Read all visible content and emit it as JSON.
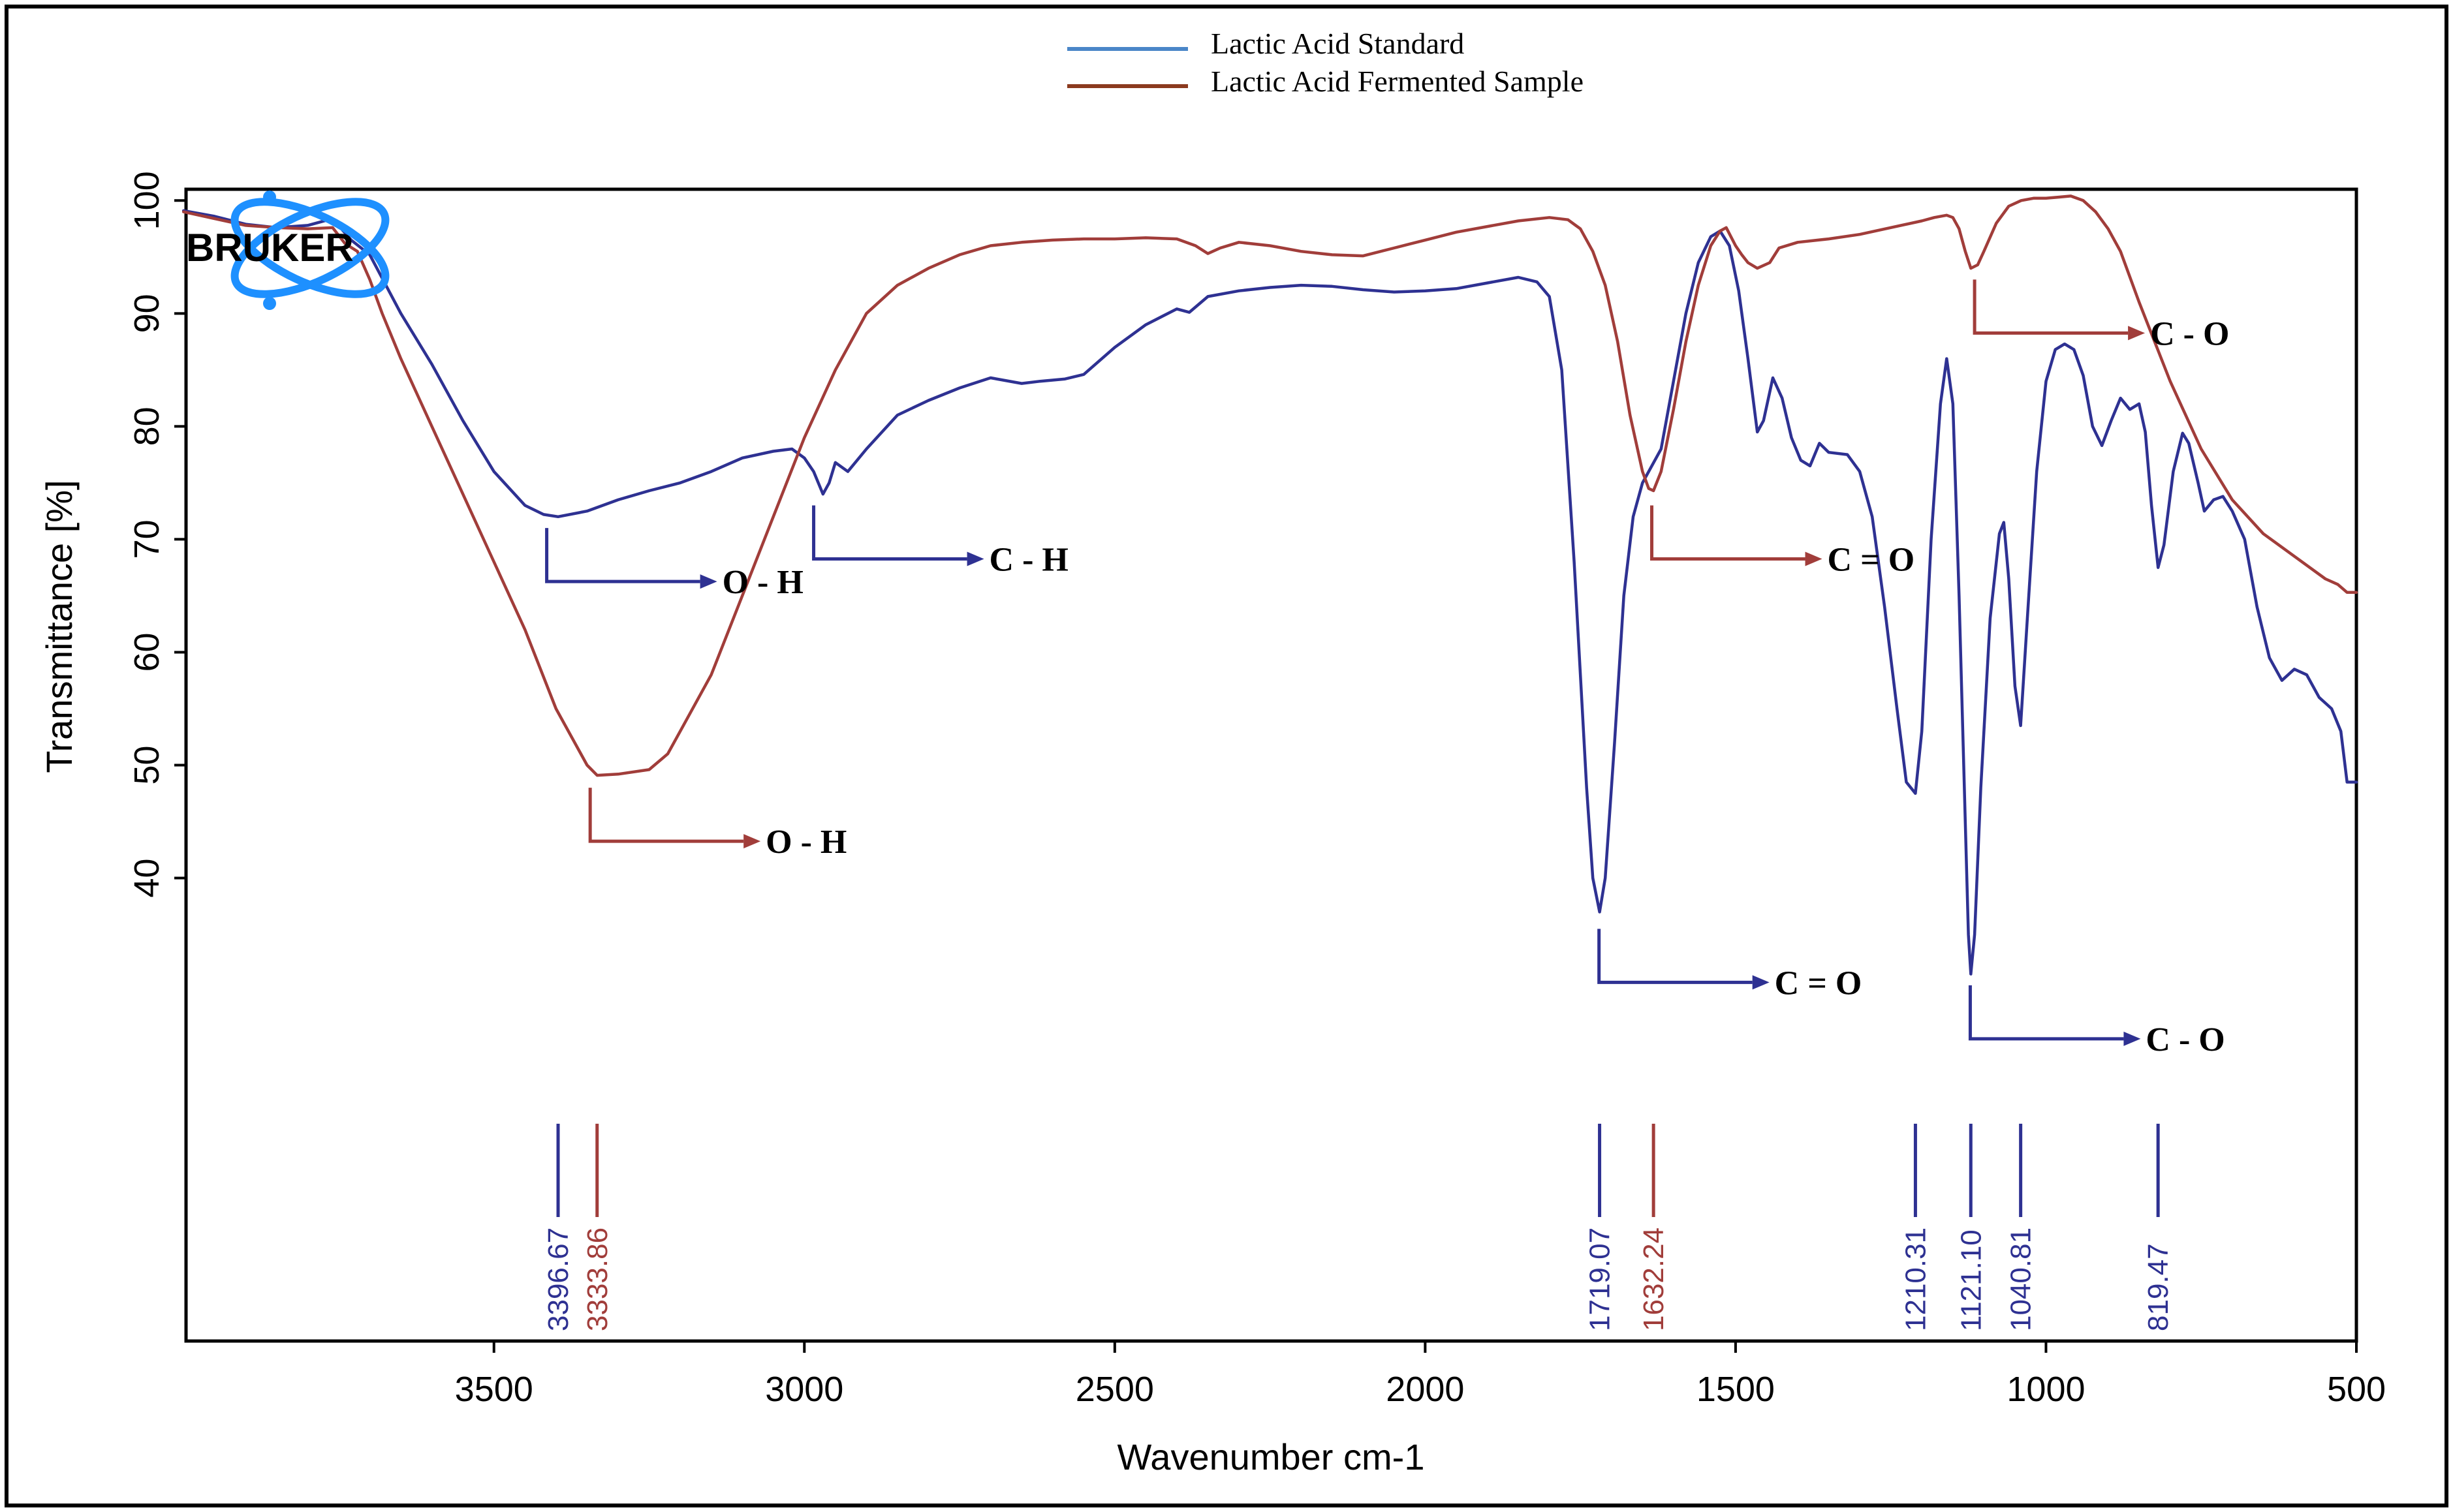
{
  "chart_data": {
    "type": "line",
    "title": "",
    "xlabel": "Wavenumber cm-1",
    "ylabel": "Transmittance [%]",
    "xlim": [
      4000,
      500
    ],
    "ylim": [
      -1,
      101
    ],
    "x_ticks": [
      3500,
      3000,
      2500,
      2000,
      1500,
      1000,
      500
    ],
    "y_ticks": [
      40,
      50,
      60,
      70,
      80,
      90,
      100
    ],
    "grid": false,
    "legend_position": "top-center",
    "logo_text": "BRUKER",
    "series": [
      {
        "name": "Lactic Acid Standard",
        "color": "#2e3192",
        "legend_color": "#4a86c8",
        "points": [
          [
            4000,
            99.1
          ],
          [
            3950,
            98.6
          ],
          [
            3900,
            97.9
          ],
          [
            3850,
            97.6
          ],
          [
            3800,
            97.8
          ],
          [
            3760,
            98.4
          ],
          [
            3730,
            96.5
          ],
          [
            3700,
            95.2
          ],
          [
            3650,
            90.0
          ],
          [
            3600,
            85.5
          ],
          [
            3550,
            80.5
          ],
          [
            3500,
            76.0
          ],
          [
            3450,
            73.0
          ],
          [
            3420,
            72.2
          ],
          [
            3396.67,
            72.0
          ],
          [
            3350,
            72.5
          ],
          [
            3300,
            73.5
          ],
          [
            3250,
            74.3
          ],
          [
            3200,
            75.0
          ],
          [
            3150,
            76.0
          ],
          [
            3100,
            77.2
          ],
          [
            3050,
            77.8
          ],
          [
            3020,
            78.0
          ],
          [
            3000,
            77.2
          ],
          [
            2985,
            76.0
          ],
          [
            2970,
            74.0
          ],
          [
            2960,
            75.0
          ],
          [
            2950,
            76.8
          ],
          [
            2930,
            76.0
          ],
          [
            2900,
            78.0
          ],
          [
            2850,
            81.0
          ],
          [
            2800,
            82.3
          ],
          [
            2750,
            83.4
          ],
          [
            2700,
            84.3
          ],
          [
            2650,
            83.8
          ],
          [
            2620,
            84.0
          ],
          [
            2580,
            84.2
          ],
          [
            2550,
            84.6
          ],
          [
            2500,
            87.0
          ],
          [
            2450,
            89.0
          ],
          [
            2400,
            90.4
          ],
          [
            2380,
            90.1
          ],
          [
            2350,
            91.5
          ],
          [
            2300,
            92.0
          ],
          [
            2250,
            92.3
          ],
          [
            2200,
            92.5
          ],
          [
            2150,
            92.4
          ],
          [
            2100,
            92.1
          ],
          [
            2050,
            91.9
          ],
          [
            2000,
            92.0
          ],
          [
            1950,
            92.2
          ],
          [
            1900,
            92.7
          ],
          [
            1850,
            93.2
          ],
          [
            1820,
            92.8
          ],
          [
            1800,
            91.5
          ],
          [
            1780,
            85.0
          ],
          [
            1760,
            68.0
          ],
          [
            1740,
            48.0
          ],
          [
            1730,
            40.0
          ],
          [
            1719.07,
            37.0
          ],
          [
            1710,
            40.0
          ],
          [
            1695,
            52.0
          ],
          [
            1680,
            65.0
          ],
          [
            1665,
            72.0
          ],
          [
            1650,
            75.0
          ],
          [
            1620,
            78.0
          ],
          [
            1600,
            84.0
          ],
          [
            1580,
            90.0
          ],
          [
            1560,
            94.5
          ],
          [
            1540,
            96.8
          ],
          [
            1525,
            97.3
          ],
          [
            1510,
            96.0
          ],
          [
            1495,
            92.0
          ],
          [
            1480,
            86.0
          ],
          [
            1465,
            79.5
          ],
          [
            1455,
            80.5
          ],
          [
            1440,
            84.3
          ],
          [
            1425,
            82.5
          ],
          [
            1410,
            79.0
          ],
          [
            1395,
            77.0
          ],
          [
            1380,
            76.5
          ],
          [
            1365,
            78.5
          ],
          [
            1350,
            77.7
          ],
          [
            1320,
            77.5
          ],
          [
            1300,
            76.0
          ],
          [
            1280,
            72.0
          ],
          [
            1260,
            64.0
          ],
          [
            1240,
            55.0
          ],
          [
            1225,
            48.5
          ],
          [
            1210.31,
            47.5
          ],
          [
            1200,
            53.0
          ],
          [
            1185,
            70.0
          ],
          [
            1170,
            82.0
          ],
          [
            1160,
            86.0
          ],
          [
            1150,
            82.0
          ],
          [
            1140,
            65.0
          ],
          [
            1130,
            45.0
          ],
          [
            1125,
            35.0
          ],
          [
            1121.1,
            31.5
          ],
          [
            1115,
            35.0
          ],
          [
            1105,
            48.0
          ],
          [
            1090,
            63.0
          ],
          [
            1075,
            70.5
          ],
          [
            1068,
            71.5
          ],
          [
            1060,
            66.5
          ],
          [
            1050,
            57.0
          ],
          [
            1040.81,
            53.5
          ],
          [
            1030,
            63.0
          ],
          [
            1015,
            76.0
          ],
          [
            1000,
            84.0
          ],
          [
            985,
            86.8
          ],
          [
            970,
            87.3
          ],
          [
            955,
            86.8
          ],
          [
            940,
            84.5
          ],
          [
            925,
            80.0
          ],
          [
            910,
            78.3
          ],
          [
            895,
            80.5
          ],
          [
            880,
            82.5
          ],
          [
            865,
            81.5
          ],
          [
            850,
            82.0
          ],
          [
            840,
            79.5
          ],
          [
            830,
            73.0
          ],
          [
            819.47,
            67.5
          ],
          [
            810,
            69.5
          ],
          [
            795,
            76.0
          ],
          [
            780,
            79.4
          ],
          [
            770,
            78.5
          ],
          [
            755,
            75.0
          ],
          [
            745,
            72.5
          ],
          [
            730,
            73.5
          ],
          [
            715,
            73.8
          ],
          [
            700,
            72.5
          ],
          [
            680,
            70.0
          ],
          [
            660,
            64.0
          ],
          [
            640,
            59.5
          ],
          [
            620,
            57.5
          ],
          [
            600,
            58.5
          ],
          [
            580,
            58.0
          ],
          [
            560,
            56.0
          ],
          [
            540,
            55.0
          ],
          [
            525,
            53.0
          ],
          [
            515,
            48.5
          ],
          [
            500,
            48.5
          ]
        ]
      },
      {
        "name": "Lactic Acid Fermented Sample",
        "color": "#a13d3a",
        "legend_color": "#8b3a1e",
        "points": [
          [
            4000,
            99.0
          ],
          [
            3950,
            98.4
          ],
          [
            3900,
            97.8
          ],
          [
            3850,
            97.6
          ],
          [
            3800,
            97.5
          ],
          [
            3760,
            97.6
          ],
          [
            3740,
            96.2
          ],
          [
            3720,
            95.5
          ],
          [
            3700,
            93.0
          ],
          [
            3680,
            90.0
          ],
          [
            3650,
            86.0
          ],
          [
            3600,
            80.0
          ],
          [
            3550,
            74.0
          ],
          [
            3500,
            68.0
          ],
          [
            3450,
            62.0
          ],
          [
            3400,
            55.0
          ],
          [
            3350,
            50.0
          ],
          [
            3333.86,
            49.1
          ],
          [
            3300,
            49.2
          ],
          [
            3250,
            49.6
          ],
          [
            3220,
            51.0
          ],
          [
            3200,
            53.0
          ],
          [
            3150,
            58.0
          ],
          [
            3100,
            65.0
          ],
          [
            3050,
            72.0
          ],
          [
            3000,
            79.0
          ],
          [
            2950,
            85.0
          ],
          [
            2900,
            90.0
          ],
          [
            2850,
            92.5
          ],
          [
            2800,
            94.0
          ],
          [
            2750,
            95.2
          ],
          [
            2700,
            96.0
          ],
          [
            2650,
            96.3
          ],
          [
            2600,
            96.5
          ],
          [
            2550,
            96.6
          ],
          [
            2500,
            96.6
          ],
          [
            2450,
            96.7
          ],
          [
            2400,
            96.6
          ],
          [
            2370,
            96.0
          ],
          [
            2350,
            95.3
          ],
          [
            2330,
            95.8
          ],
          [
            2300,
            96.3
          ],
          [
            2250,
            96.0
          ],
          [
            2200,
            95.5
          ],
          [
            2150,
            95.2
          ],
          [
            2100,
            95.1
          ],
          [
            2050,
            95.8
          ],
          [
            2000,
            96.5
          ],
          [
            1950,
            97.2
          ],
          [
            1900,
            97.7
          ],
          [
            1850,
            98.2
          ],
          [
            1800,
            98.5
          ],
          [
            1770,
            98.3
          ],
          [
            1750,
            97.5
          ],
          [
            1730,
            95.5
          ],
          [
            1710,
            92.5
          ],
          [
            1690,
            87.5
          ],
          [
            1670,
            81.0
          ],
          [
            1650,
            76.0
          ],
          [
            1640,
            74.5
          ],
          [
            1632.24,
            74.3
          ],
          [
            1620,
            76.0
          ],
          [
            1600,
            81.5
          ],
          [
            1580,
            87.5
          ],
          [
            1560,
            92.5
          ],
          [
            1540,
            96.0
          ],
          [
            1525,
            97.3
          ],
          [
            1515,
            97.6
          ],
          [
            1500,
            96.0
          ],
          [
            1490,
            95.2
          ],
          [
            1480,
            94.5
          ],
          [
            1465,
            94.0
          ],
          [
            1445,
            94.5
          ],
          [
            1430,
            95.8
          ],
          [
            1400,
            96.3
          ],
          [
            1350,
            96.6
          ],
          [
            1300,
            97.0
          ],
          [
            1250,
            97.6
          ],
          [
            1200,
            98.2
          ],
          [
            1180,
            98.5
          ],
          [
            1160,
            98.7
          ],
          [
            1150,
            98.5
          ],
          [
            1140,
            97.5
          ],
          [
            1130,
            95.5
          ],
          [
            1121.1,
            94.0
          ],
          [
            1110,
            94.3
          ],
          [
            1100,
            95.5
          ],
          [
            1080,
            98.0
          ],
          [
            1060,
            99.5
          ],
          [
            1040,
            100.0
          ],
          [
            1020,
            100.2
          ],
          [
            1000,
            100.2
          ],
          [
            980,
            100.3
          ],
          [
            960,
            100.4
          ],
          [
            940,
            100.0
          ],
          [
            920,
            99.0
          ],
          [
            900,
            97.5
          ],
          [
            880,
            95.5
          ],
          [
            850,
            91.0
          ],
          [
            800,
            84.0
          ],
          [
            750,
            78.0
          ],
          [
            700,
            73.5
          ],
          [
            650,
            70.5
          ],
          [
            600,
            68.5
          ],
          [
            550,
            66.5
          ],
          [
            530,
            66.0
          ],
          [
            515,
            65.3
          ],
          [
            500,
            65.3
          ]
        ]
      }
    ],
    "peak_markers": [
      {
        "wavenumber": 3396.67,
        "label": "3396.67",
        "series": "Lactic Acid Standard"
      },
      {
        "wavenumber": 3333.86,
        "label": "3333.86",
        "series": "Lactic Acid Fermented Sample"
      },
      {
        "wavenumber": 1719.07,
        "label": "1719.07",
        "series": "Lactic Acid Standard"
      },
      {
        "wavenumber": 1632.24,
        "label": "1632.24",
        "series": "Lactic Acid Fermented Sample"
      },
      {
        "wavenumber": 1210.31,
        "label": "1210.31",
        "series": "Lactic Acid Standard"
      },
      {
        "wavenumber": 1121.1,
        "label": "1121.10",
        "series": "Lactic Acid Standard"
      },
      {
        "wavenumber": 1040.81,
        "label": "1040.81",
        "series": "Lactic Acid Standard"
      },
      {
        "wavenumber": 819.47,
        "label": "819.47",
        "series": "Lactic Acid Standard"
      }
    ],
    "annotations": [
      {
        "label": "O - H",
        "series": "Lactic Acid Standard",
        "wavenumber": 3415,
        "value": 71
      },
      {
        "label": "C - H",
        "series": "Lactic Acid Standard",
        "wavenumber": 2985,
        "value": 73
      },
      {
        "label": "O - H",
        "series": "Lactic Acid Fermented Sample",
        "wavenumber": 3345,
        "value": 48
      },
      {
        "label": "C = O",
        "series": "Lactic Acid Standard",
        "wavenumber": 1720,
        "value": 35.5
      },
      {
        "label": "C = O",
        "series": "Lactic Acid Fermented Sample",
        "wavenumber": 1635,
        "value": 73
      },
      {
        "label": "C - O",
        "series": "Lactic Acid Standard",
        "wavenumber": 1122,
        "value": 30.5
      },
      {
        "label": "C - O",
        "series": "Lactic Acid Fermented Sample",
        "wavenumber": 1115,
        "value": 93
      }
    ]
  }
}
